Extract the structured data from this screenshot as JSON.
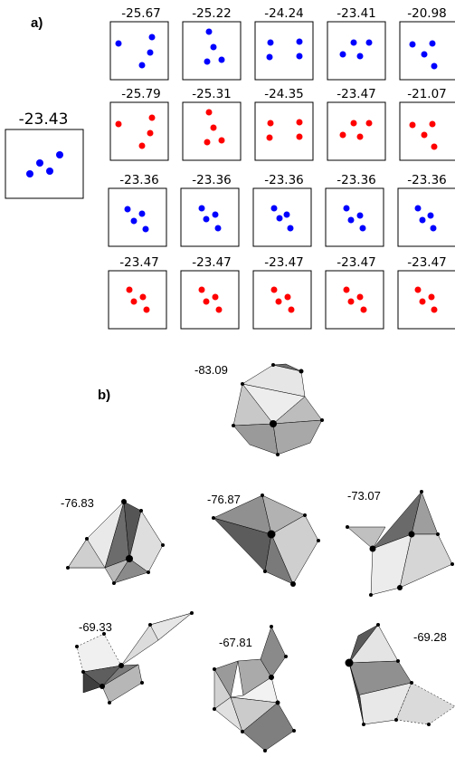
{
  "panel_a": {
    "label": "a)",
    "reference": {
      "value": "-23.43",
      "color": "#0000ff"
    },
    "rows": [
      {
        "color": "#0000ff",
        "values": [
          "-25.67",
          "-25.22",
          "-24.24",
          "-23.41",
          "-20.98"
        ]
      },
      {
        "color": "#ff0000",
        "values": [
          "-25.79",
          "-25.31",
          "-24.35",
          "-23.47",
          "-21.07"
        ]
      },
      {
        "color": "#0000ff",
        "values": [
          "-23.36",
          "-23.36",
          "-23.36",
          "-23.36",
          "-23.36"
        ]
      },
      {
        "color": "#ff0000",
        "values": [
          "-23.47",
          "-23.47",
          "-23.47",
          "-23.47",
          "-23.47"
        ]
      }
    ]
  },
  "panel_b": {
    "label": "b)",
    "values": [
      "-83.09",
      "-76.83",
      "-76.87",
      "-73.07",
      "-69.33",
      "-67.81",
      "-69.28"
    ]
  }
}
